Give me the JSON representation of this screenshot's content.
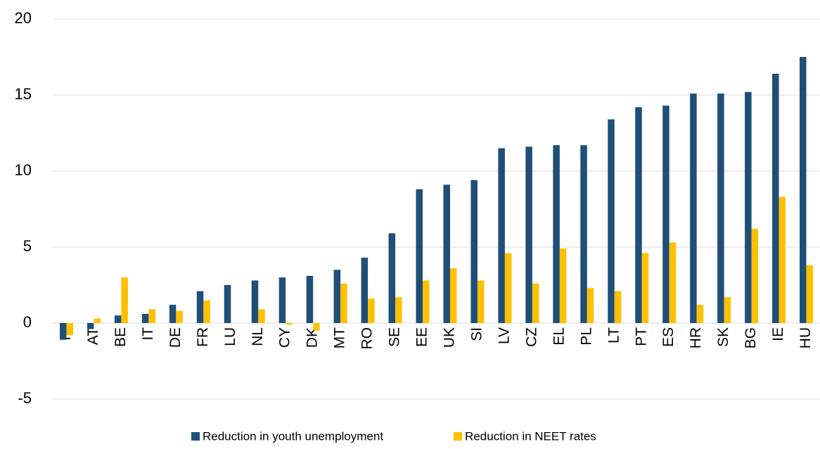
{
  "chart_data": {
    "type": "bar",
    "categories": [
      "FI",
      "AT",
      "BE",
      "IT",
      "DE",
      "FR",
      "LU",
      "NL",
      "CY",
      "DK",
      "MT",
      "RO",
      "SE",
      "EE",
      "UK",
      "SI",
      "LV",
      "CZ",
      "EL",
      "PL",
      "LT",
      "PT",
      "ES",
      "HR",
      "SK",
      "BG",
      "IE",
      "HU"
    ],
    "series": [
      {
        "name": "Reduction in youth unemployment",
        "color": "#1f4e79",
        "values": [
          -1.1,
          -0.4,
          0.5,
          0.6,
          1.2,
          2.1,
          2.5,
          2.8,
          3.0,
          3.1,
          3.5,
          4.3,
          5.9,
          8.8,
          9.1,
          9.4,
          11.5,
          11.6,
          11.7,
          11.7,
          13.4,
          14.2,
          14.3,
          15.1,
          15.1,
          15.2,
          16.4,
          17.5
        ]
      },
      {
        "name": "Reduction in NEET rates",
        "color": "#ffc000",
        "values": [
          -0.8,
          0.3,
          3.0,
          0.9,
          0.8,
          1.5,
          null,
          0.9,
          -0.1,
          -0.5,
          2.6,
          1.6,
          1.7,
          2.8,
          3.6,
          2.8,
          4.6,
          2.6,
          4.9,
          2.3,
          2.1,
          4.6,
          5.3,
          1.2,
          1.7,
          6.2,
          8.3,
          3.8
        ]
      }
    ],
    "ylim": [
      -5,
      20
    ],
    "yticks": [
      -5,
      0,
      5,
      10,
      15,
      20
    ],
    "grid": true
  }
}
